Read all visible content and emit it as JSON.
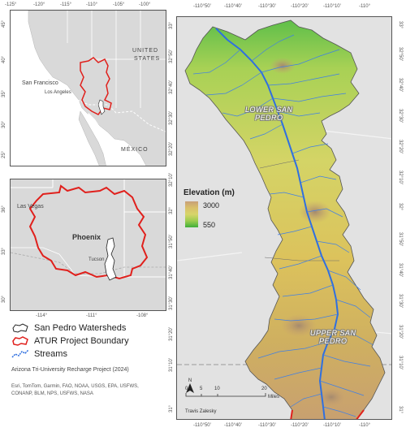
{
  "inset_top": {
    "top_ticks": [
      "-125°",
      "-120°",
      "-115°",
      "-110°",
      "-105°",
      "-100°"
    ],
    "left_ticks": [
      "45°",
      "40°",
      "35°",
      "30°",
      "25°"
    ],
    "labels": {
      "united_states": "UNITED STATES",
      "san_francisco": "San Francisco",
      "los_angeles": "Los Angeles",
      "mexico": "MÉXICO"
    }
  },
  "inset_mid": {
    "bottom_ticks": [
      "-114°",
      "-111°",
      "-108°"
    ],
    "left_ticks": [
      "36°",
      "33°",
      "30°"
    ],
    "labels": {
      "las_vegas": "Las Vegas",
      "phoenix": "Phoenix",
      "tucson": "Tucson"
    }
  },
  "main_map": {
    "top_ticks": [
      "-110°50'",
      "-110°40'",
      "-110°30'",
      "-110°20'",
      "-110°10'",
      "-110°"
    ],
    "bottom_ticks": [
      "-110°50'",
      "-110°40'",
      "-110°30'",
      "-110°20'",
      "-110°10'",
      "-110°"
    ],
    "left_ticks": [
      "33°",
      "32°50'",
      "32°40'",
      "32°30'",
      "32°20'",
      "32°10'",
      "32°",
      "31°50'",
      "31°40'",
      "31°30'",
      "31°20'",
      "31°10'",
      "31°"
    ],
    "right_ticks": [
      "33°",
      "32°50'",
      "32°40'",
      "32°30'",
      "32°20'",
      "32°10'",
      "32°",
      "31°50'",
      "31°40'",
      "31°30'",
      "31°20'",
      "31°10'",
      "31°"
    ],
    "regions": {
      "lower_line1": "LOWER SAN",
      "lower_line2": "PEDRO",
      "upper_line1": "UPPER SAN",
      "upper_line2": "PEDRO"
    }
  },
  "elevation_legend": {
    "title": "Elevation (m)",
    "high": "3000",
    "low": "550"
  },
  "legend": {
    "watersheds": "San Pedro Watersheds",
    "boundary": "ATUR Project Boundary",
    "streams": "Streams"
  },
  "credits": {
    "project": "Arizona Tri-University Recharge Project (2024)",
    "line1": "Esri, TomTom, Garmin, FAO, NOAA, USGS, EPA, USFWS,",
    "line2": "CONANP, BLM, NPS, USFWS, NASA"
  },
  "scale_bar": {
    "north": "N",
    "ticks": [
      "0",
      "5",
      "10",
      "20"
    ],
    "units": "Miles",
    "author": "Travis Zalesky"
  },
  "colors": {
    "boundary": "#e0201c",
    "stream": "#2f6fe0",
    "land": "#d9d9d9",
    "water": "#ffffff"
  }
}
